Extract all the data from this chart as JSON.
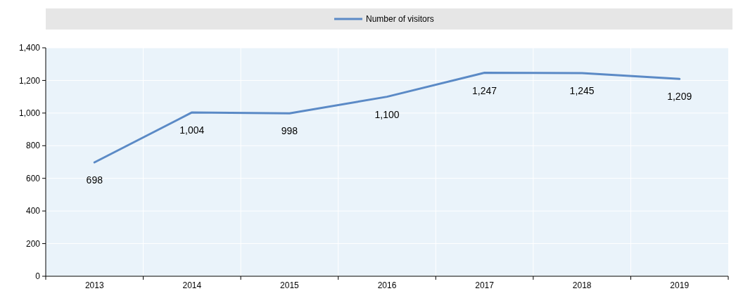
{
  "chart_data": {
    "type": "line",
    "categories": [
      "2013",
      "2014",
      "2015",
      "2016",
      "2017",
      "2018",
      "2019"
    ],
    "series": [
      {
        "name": "Number of visitors",
        "color": "#5b8ac6",
        "values": [
          698,
          1004,
          998,
          1100,
          1247,
          1245,
          1209
        ],
        "value_labels": [
          "698",
          "1,004",
          "998",
          "1,100",
          "1,247",
          "1,245",
          "1,209"
        ]
      }
    ],
    "ylim": [
      0,
      1400
    ],
    "yticks": [
      {
        "value": 0,
        "label": "0"
      },
      {
        "value": 200,
        "label": "200"
      },
      {
        "value": 400,
        "label": "400"
      },
      {
        "value": 600,
        "label": "600"
      },
      {
        "value": 800,
        "label": "800"
      },
      {
        "value": 1000,
        "label": "1,000"
      },
      {
        "value": 1200,
        "label": "1,200"
      },
      {
        "value": 1400,
        "label": "1,400"
      }
    ],
    "grid": true,
    "legend": "top",
    "marker": "none",
    "line_style": "solid"
  }
}
